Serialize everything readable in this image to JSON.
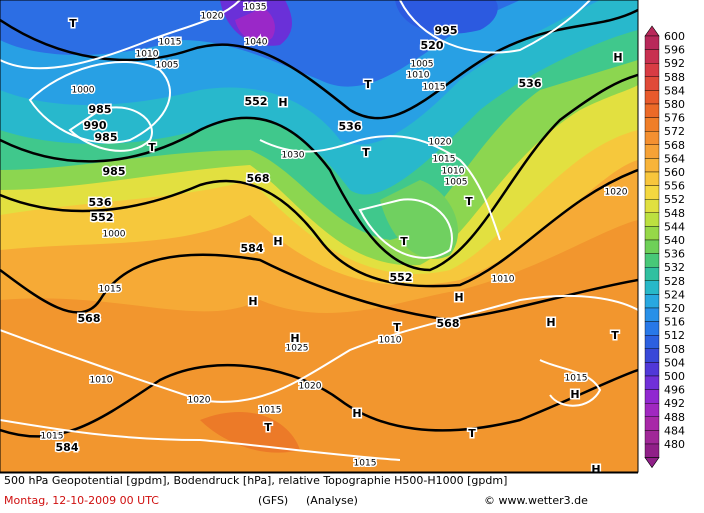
{
  "colorbar": {
    "labels": [
      600,
      596,
      592,
      588,
      584,
      580,
      576,
      572,
      568,
      564,
      560,
      556,
      552,
      548,
      544,
      540,
      536,
      532,
      528,
      524,
      520,
      516,
      512,
      508,
      504,
      500,
      496,
      492,
      488,
      484,
      480
    ],
    "colors": [
      "#b8285a",
      "#c83050",
      "#d83c44",
      "#e04a38",
      "#e85a2c",
      "#ec6a28",
      "#f07e28",
      "#f49030",
      "#f6a236",
      "#f8b43a",
      "#f8c63c",
      "#f4d840",
      "#e0e040",
      "#bce040",
      "#96d848",
      "#6ed058",
      "#48c878",
      "#30c0a0",
      "#28b8c8",
      "#28a8e0",
      "#2890e8",
      "#2878e8",
      "#2c60e0",
      "#3848d8",
      "#5038d8",
      "#7030d8",
      "#9028d0",
      "#a028c0",
      "#a828a8",
      "#a02898",
      "#902088"
    ]
  },
  "map_labels": [
    "1035",
    "1040",
    "1020",
    "1015",
    "1010",
    "1005",
    "1000",
    "985",
    "990",
    "985",
    "985",
    "552",
    "H",
    "536",
    "T",
    "520",
    "995",
    "1005",
    "1010",
    "1015",
    "536",
    "H",
    "1030",
    "T",
    "1020",
    "1015",
    "1010",
    "1005",
    "T",
    "568",
    "536",
    "552",
    "1000",
    "584",
    "H",
    "T",
    "552",
    "1010",
    "H",
    "1015",
    "568",
    "H",
    "H",
    "1025",
    "568",
    "T",
    "1010",
    "H",
    "T",
    "1010",
    "1020",
    "1020",
    "1015",
    "T",
    "H",
    "1015",
    "H",
    "1015",
    "584",
    "T",
    "1015",
    "H",
    "1020",
    "T",
    "T"
  ],
  "footer": {
    "line1": "500 hPa Geopotential [gpdm], Bodendruck [hPa], relative Topographie H500-H1000 [gpdm]",
    "date": "Montag, 12-10-2009  00 UTC",
    "model": "(GFS)",
    "kind": "(Analyse)",
    "source": "© www.wetter3.de"
  }
}
